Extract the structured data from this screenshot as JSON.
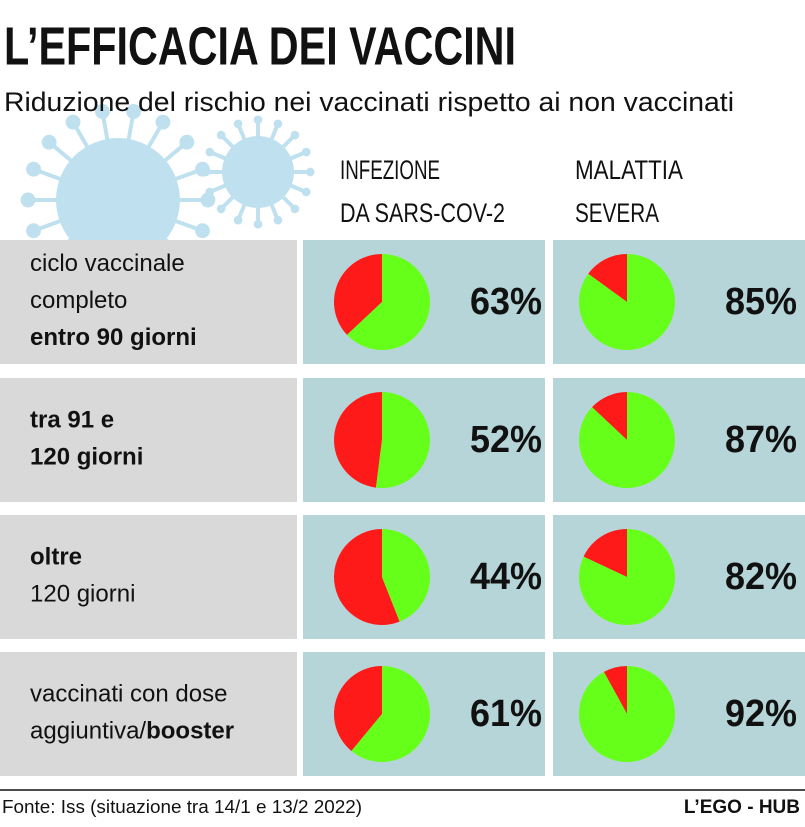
{
  "chart_data": {
    "type": "pie-table",
    "title": "L’EFFICACIA DEI VACCINI",
    "subtitle": "Riduzione del rischio nei vaccinati rispetto ai non vaccinati",
    "colors": {
      "value": "#66ff1a",
      "rest": "#ff1a1a"
    },
    "columns": [
      {
        "lines": [
          "INFEZIONE",
          "DA SARS-COV-2"
        ]
      },
      {
        "lines": [
          "MALATTIA",
          "SEVERA"
        ]
      }
    ],
    "rows": [
      {
        "lines": [
          [
            {
              "text": "ciclo vaccinale",
              "bold": false
            }
          ],
          [
            {
              "text": "completo",
              "bold": false
            }
          ],
          [
            {
              "text": "entro 90 giorni",
              "bold": true
            }
          ]
        ],
        "values": [
          63,
          85
        ],
        "value_labels": [
          "63%",
          "85%"
        ]
      },
      {
        "lines": [
          [
            {
              "text": "tra 91 e",
              "bold": true
            }
          ],
          [
            {
              "text": "120 giorni",
              "bold": true
            }
          ]
        ],
        "values": [
          52,
          87
        ],
        "value_labels": [
          "52%",
          "87%"
        ]
      },
      {
        "lines": [
          [
            {
              "text": "oltre",
              "bold": true
            }
          ],
          [
            {
              "text": "120 giorni",
              "bold": false
            }
          ]
        ],
        "values": [
          44,
          82
        ],
        "value_labels": [
          "44%",
          "82%"
        ]
      },
      {
        "lines": [
          [
            {
              "text": "vaccinati con dose",
              "bold": false
            }
          ],
          [
            {
              "text": "aggiuntiva/",
              "bold": false
            },
            {
              "text": "booster",
              "bold": true
            }
          ]
        ],
        "values": [
          61,
          92
        ],
        "value_labels": [
          "61%",
          "92%"
        ]
      }
    ],
    "source": "Fonte: Iss (situazione tra 14/1 e 13/2 2022)",
    "credit": "L’EGO - HUB"
  }
}
